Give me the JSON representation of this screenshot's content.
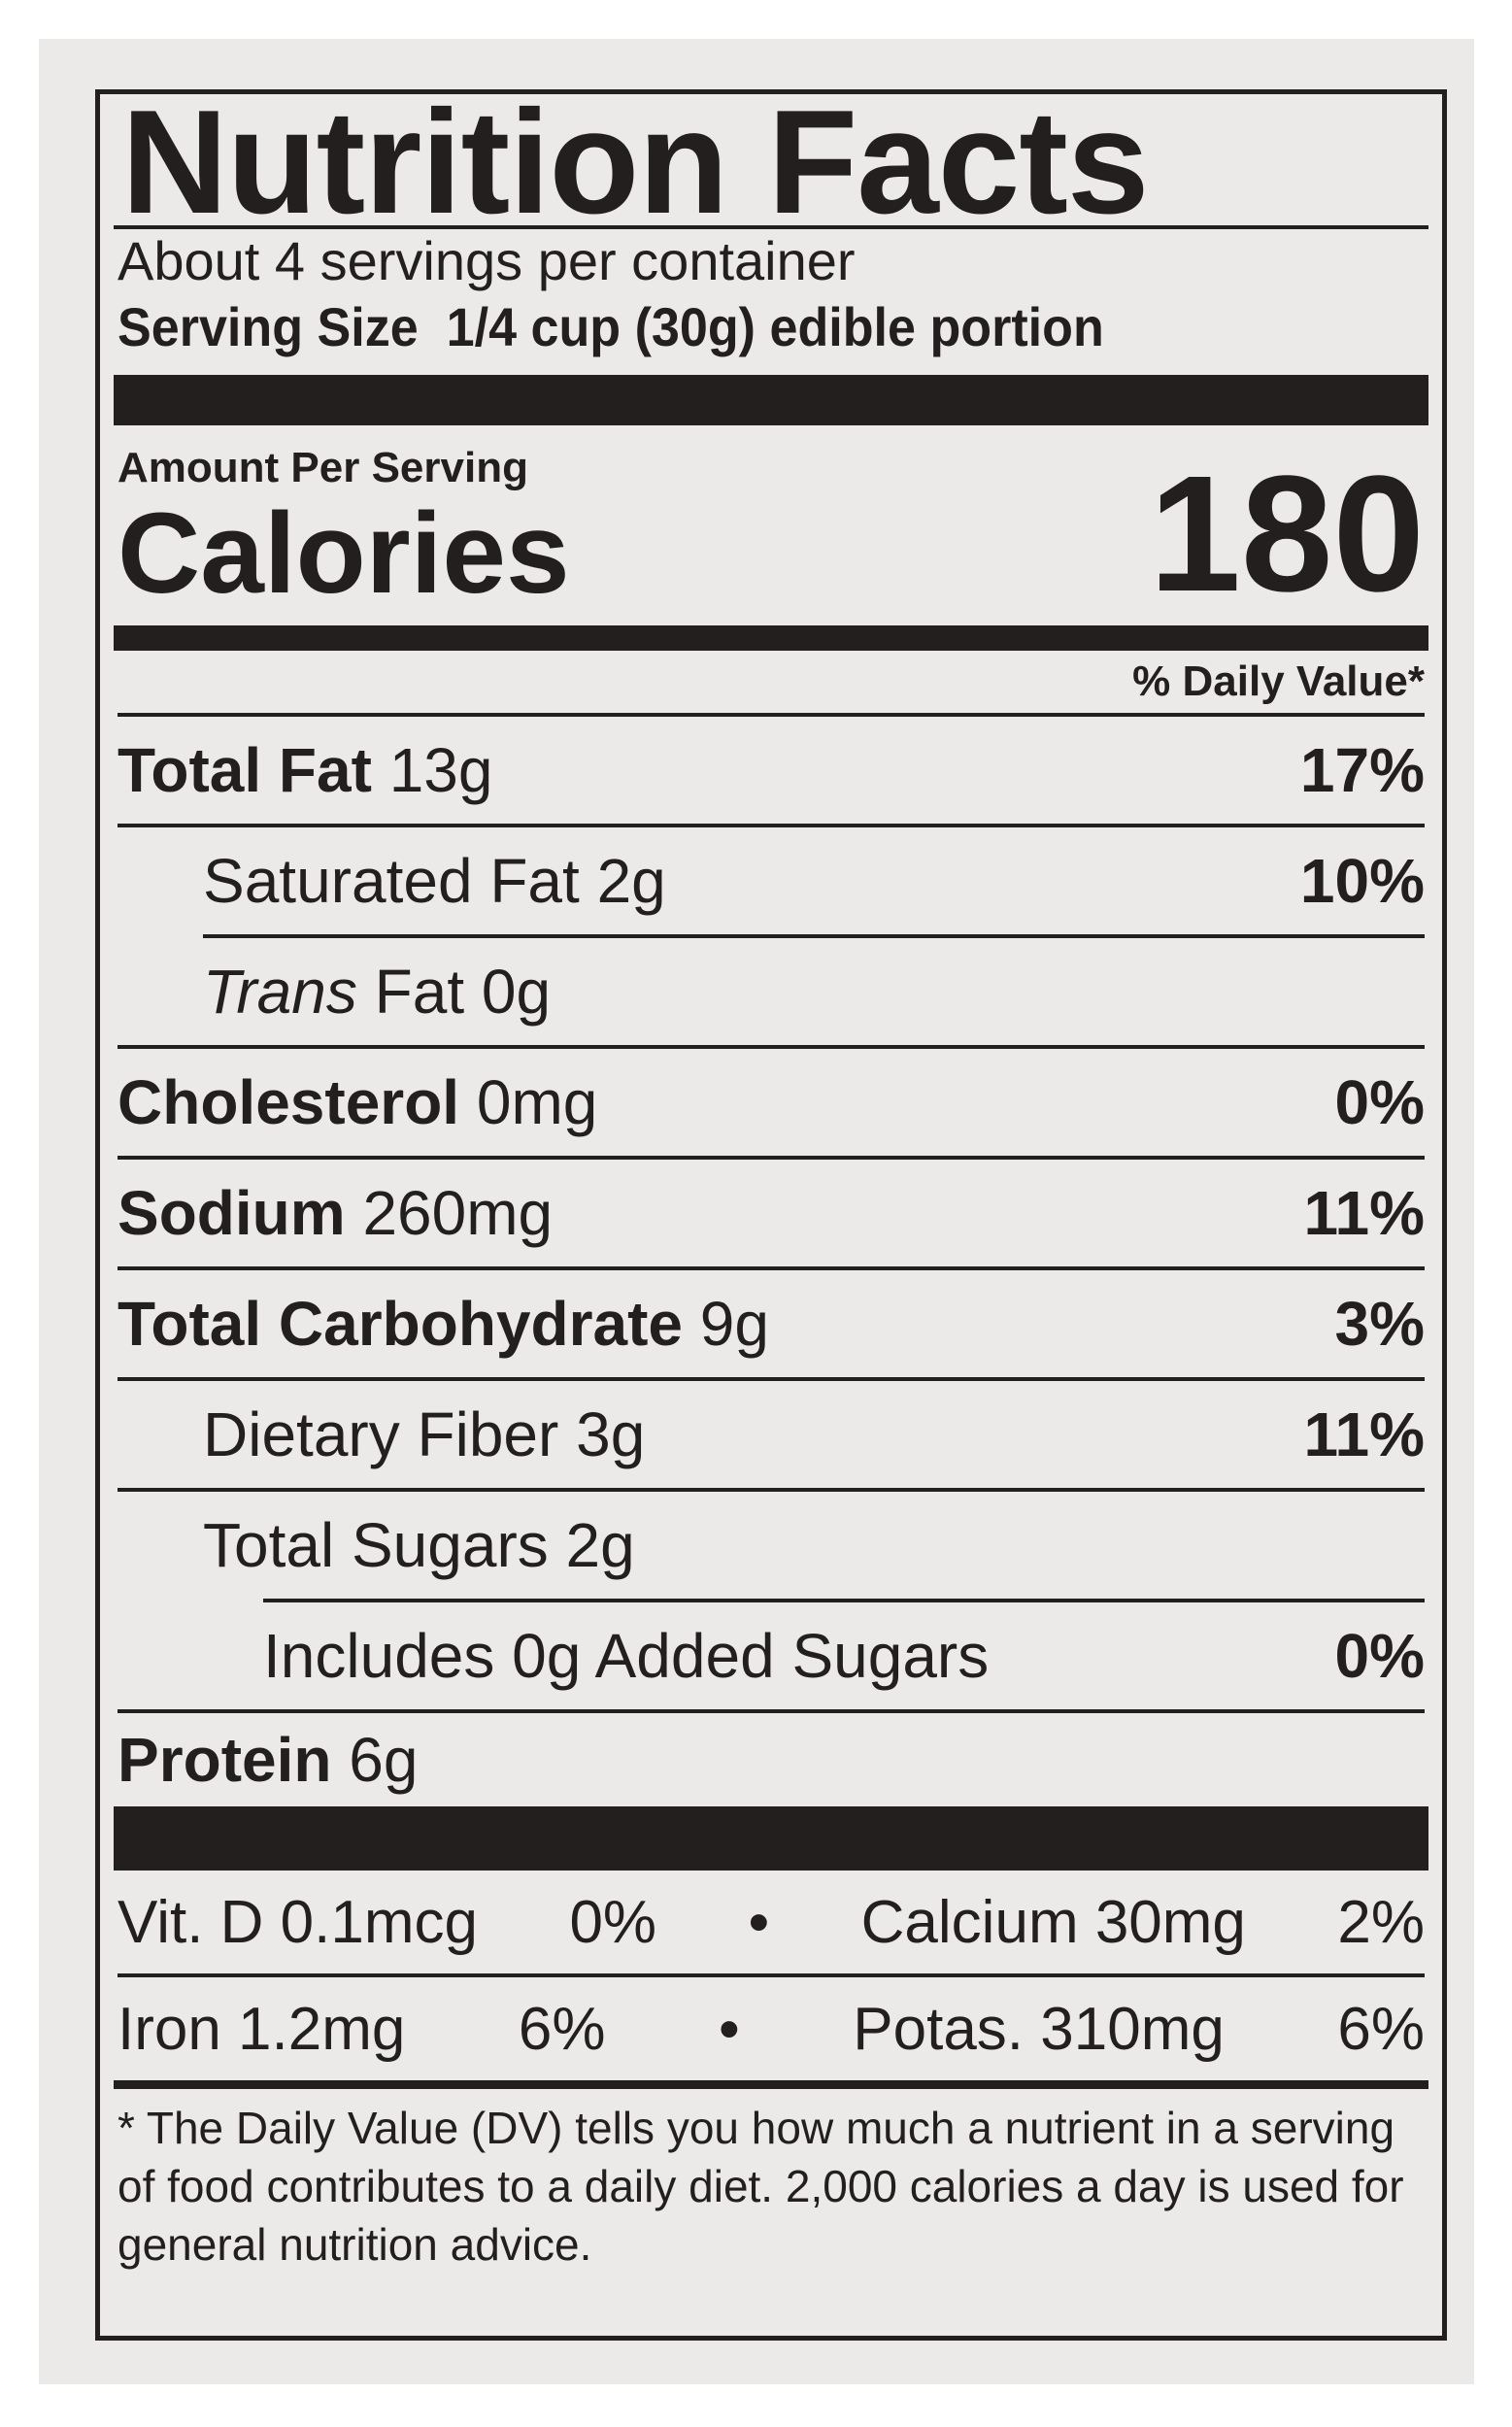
{
  "label": {
    "title": "Nutrition Facts",
    "servings": "About 4 servings per container",
    "serving_size_label": "Serving Size",
    "serving_size_value": "1/4 cup (30g) edible portion",
    "amount_per_serving": "Amount Per Serving",
    "calories_label": "Calories",
    "calories_value": "180",
    "dv_header": "% Daily Value*",
    "nutrients": [
      {
        "name": "Total Fat",
        "amount": "13g",
        "dv": "17%"
      },
      {
        "name": "Saturated Fat",
        "amount": "2g",
        "dv": "10%"
      },
      {
        "name": "Trans",
        "amount": "Fat 0g",
        "dv": ""
      },
      {
        "name": "Cholesterol",
        "amount": "0mg",
        "dv": "0%"
      },
      {
        "name": "Sodium",
        "amount": "260mg",
        "dv": "11%"
      },
      {
        "name": "Total Carbohydrate",
        "amount": "9g",
        "dv": "3%"
      },
      {
        "name": "Dietary Fiber",
        "amount": "3g",
        "dv": "11%"
      },
      {
        "name": "Total Sugars",
        "amount": "2g",
        "dv": ""
      },
      {
        "name": "Includes 0g Added Sugars",
        "amount": "",
        "dv": "0%"
      },
      {
        "name": "Protein",
        "amount": "6g",
        "dv": ""
      }
    ],
    "vitamins": [
      {
        "a": "Vit. D 0.1mcg",
        "a_dv": "0%",
        "b": "Calcium 30mg",
        "b_dv": "2%"
      },
      {
        "a": "Iron 1.2mg",
        "a_dv": "6%",
        "b": "Potas. 310mg",
        "b_dv": "6%"
      }
    ],
    "bullet": "•",
    "footnote": "* The Daily Value (DV) tells you how much a nutrient in a serving of food contributes to a daily diet. 2,000 calories a day is used for general nutrition advice.",
    "ink_color": "#231f1e",
    "background_color": "#ebeae8"
  }
}
